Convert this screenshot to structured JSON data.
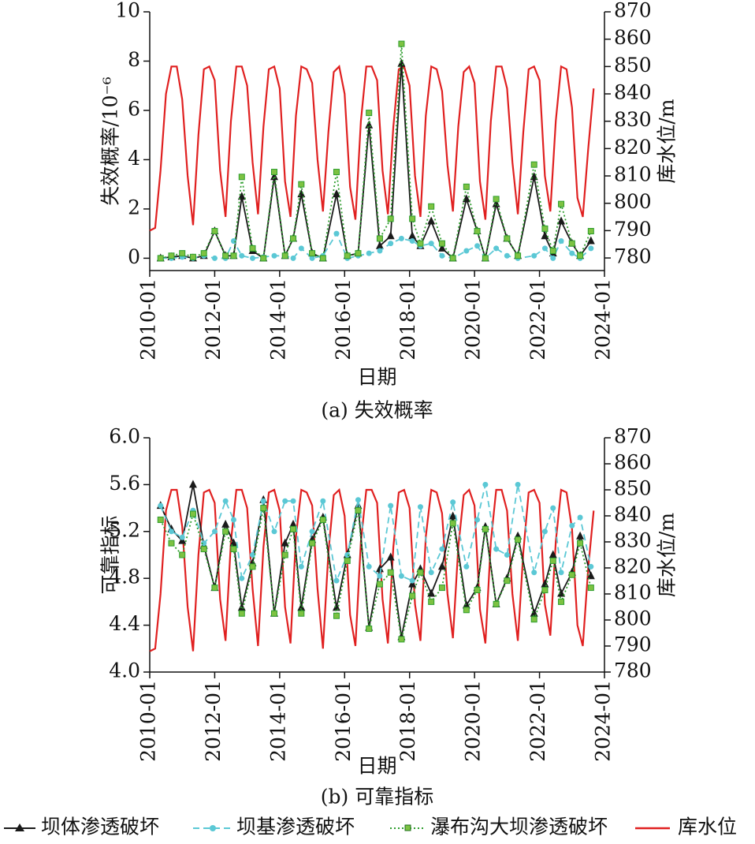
{
  "chart_data": [
    {
      "type": "line",
      "subtitle": "(a) 失效概率",
      "xlabel": "日期",
      "ylabel": "失效概率/10⁻⁶",
      "y2label": "库水位/m",
      "xlim": [
        "2010-01",
        "2024-01"
      ],
      "xticks": [
        "2010-01",
        "2012-01",
        "2014-01",
        "2016-01",
        "2018-01",
        "2020-01",
        "2022-01",
        "2024-01"
      ],
      "ylim": [
        -0.5,
        10
      ],
      "yticks": [
        0,
        2,
        4,
        6,
        8,
        10
      ],
      "y2lim": [
        775.4,
        870
      ],
      "y2ticks": [
        780,
        790,
        800,
        810,
        820,
        830,
        840,
        850,
        860,
        870
      ],
      "x": [
        "2010-05",
        "2010-09",
        "2011-01",
        "2011-05",
        "2011-09",
        "2012-01",
        "2012-05",
        "2012-08",
        "2012-11",
        "2013-03",
        "2013-07",
        "2013-11",
        "2014-03",
        "2014-06",
        "2014-09",
        "2015-01",
        "2015-05",
        "2015-10",
        "2016-02",
        "2016-06",
        "2016-10",
        "2017-02",
        "2017-06",
        "2017-10",
        "2018-02",
        "2018-05",
        "2018-09",
        "2019-01",
        "2019-05",
        "2019-10",
        "2020-02",
        "2020-05",
        "2020-09",
        "2021-01",
        "2021-05",
        "2021-11",
        "2022-03",
        "2022-06",
        "2022-09",
        "2023-01",
        "2023-04",
        "2023-08"
      ],
      "series": [
        {
          "name": "坝体渗透破坏",
          "color": "#1a1a1a",
          "marker": "triangle",
          "dash": "solid",
          "values": [
            0,
            0.05,
            0.1,
            0,
            0.1,
            1.1,
            0.1,
            0.1,
            2.5,
            0.3,
            0,
            3.3,
            0.1,
            0.8,
            2.6,
            0.2,
            0,
            2.6,
            0.1,
            0.2,
            5.4,
            0.5,
            0.9,
            7.9,
            0.9,
            0.5,
            1.5,
            0.4,
            0,
            2.4,
            1.1,
            0,
            2.2,
            0.8,
            0.1,
            3.3,
            0.9,
            0.2,
            1.5,
            0.6,
            0.1,
            0.7
          ]
        },
        {
          "name": "坝基渗透破坏",
          "color": "#5bc8d5",
          "marker": "circle",
          "dash": "dashed",
          "values": [
            0,
            0,
            0.05,
            0,
            0.1,
            0,
            0,
            0.7,
            0.1,
            0,
            0.05,
            0.1,
            0.1,
            0,
            0.4,
            0,
            0.1,
            1.0,
            0,
            0.1,
            0.2,
            0.3,
            0.6,
            0.8,
            0.7,
            0.5,
            0.6,
            0.1,
            0,
            0.3,
            0.5,
            0,
            0.4,
            0.1,
            0,
            0.1,
            0.4,
            0,
            0.7,
            0.2,
            0,
            0.4
          ]
        },
        {
          "name": "瀑布沟大坝渗透破坏",
          "color": "#2e9e2e",
          "marker": "square",
          "dash": "dotted",
          "values": [
            0,
            0.1,
            0.2,
            0.05,
            0.2,
            1.1,
            0.1,
            0.1,
            3.3,
            0.4,
            0,
            3.5,
            0.1,
            0.8,
            3,
            0.2,
            0,
            3.5,
            0.1,
            0.2,
            5.9,
            0.8,
            1.6,
            8.7,
            1.6,
            0.6,
            2.1,
            0.6,
            0,
            2.9,
            1.1,
            0,
            2.4,
            0.8,
            0.1,
            3.8,
            1.2,
            0.3,
            2.2,
            0.6,
            0.1,
            1.1
          ]
        },
        {
          "name": "库水位",
          "color": "#e02020",
          "marker": "none",
          "dash": "solid",
          "axis": "y2",
          "x": [
            "2010-01",
            "2010-03",
            "2010-05",
            "2010-07",
            "2010-09",
            "2010-11",
            "2011-01",
            "2011-03",
            "2011-05",
            "2011-07",
            "2011-09",
            "2011-11",
            "2012-01",
            "2012-03",
            "2012-05",
            "2012-07",
            "2012-09",
            "2012-11",
            "2013-01",
            "2013-03",
            "2013-05",
            "2013-07",
            "2013-09",
            "2013-11",
            "2014-01",
            "2014-03",
            "2014-05",
            "2014-07",
            "2014-09",
            "2014-11",
            "2015-01",
            "2015-03",
            "2015-05",
            "2015-07",
            "2015-09",
            "2015-11",
            "2016-01",
            "2016-03",
            "2016-05",
            "2016-07",
            "2016-09",
            "2016-11",
            "2017-01",
            "2017-03",
            "2017-05",
            "2017-07",
            "2017-09",
            "2017-11",
            "2018-01",
            "2018-03",
            "2018-05",
            "2018-07",
            "2018-09",
            "2018-11",
            "2019-01",
            "2019-03",
            "2019-05",
            "2019-07",
            "2019-09",
            "2019-11",
            "2020-01",
            "2020-03",
            "2020-05",
            "2020-07",
            "2020-09",
            "2020-11",
            "2021-01",
            "2021-03",
            "2021-05",
            "2021-07",
            "2021-09",
            "2021-11",
            "2022-01",
            "2022-03",
            "2022-05",
            "2022-07",
            "2022-09",
            "2022-11",
            "2023-01",
            "2023-03",
            "2023-05",
            "2023-07",
            "2023-09"
          ],
          "values": [
            790,
            791,
            812,
            840,
            850,
            850,
            838,
            810,
            792,
            825,
            849,
            850,
            845,
            812,
            795,
            830,
            850,
            850,
            843,
            815,
            796,
            828,
            849,
            850,
            842,
            808,
            795,
            832,
            850,
            849,
            844,
            816,
            797,
            826,
            848,
            850,
            840,
            806,
            794,
            830,
            850,
            850,
            845,
            812,
            796,
            828,
            849,
            850,
            843,
            810,
            795,
            832,
            850,
            849,
            841,
            814,
            797,
            828,
            848,
            850,
            844,
            808,
            794,
            830,
            850,
            850,
            842,
            815,
            796,
            826,
            849,
            850,
            845,
            810,
            797,
            830,
            850,
            849,
            835,
            802,
            795,
            820,
            842
          ]
        }
      ]
    },
    {
      "type": "line",
      "subtitle": "(b) 可靠指标",
      "xlabel": "日期",
      "ylabel": "可靠指标",
      "y2label": "库水位/m",
      "xlim": [
        "2010-01",
        "2024-01"
      ],
      "xticks": [
        "2010-01",
        "2012-01",
        "2014-01",
        "2016-01",
        "2018-01",
        "2020-01",
        "2022-01",
        "2024-01"
      ],
      "ylim": [
        4,
        6
      ],
      "yticks": [
        {
          "value": 6,
          "label": "6.0"
        },
        5.6,
        5.2,
        4.8,
        4.4,
        {
          "value": 4,
          "label": "4.0"
        }
      ],
      "y2lim": [
        780,
        870
      ],
      "y2ticks": [
        780,
        790,
        800,
        810,
        820,
        830,
        840,
        850,
        860,
        870
      ],
      "x": [
        "2010-05",
        "2010-09",
        "2011-01",
        "2011-05",
        "2011-09",
        "2012-01",
        "2012-05",
        "2012-08",
        "2012-11",
        "2013-03",
        "2013-07",
        "2013-11",
        "2014-03",
        "2014-06",
        "2014-09",
        "2015-01",
        "2015-05",
        "2015-10",
        "2016-02",
        "2016-06",
        "2016-10",
        "2017-02",
        "2017-06",
        "2017-10",
        "2018-02",
        "2018-05",
        "2018-09",
        "2019-01",
        "2019-05",
        "2019-10",
        "2020-02",
        "2020-05",
        "2020-09",
        "2021-01",
        "2021-05",
        "2021-11",
        "2022-03",
        "2022-06",
        "2022-09",
        "2023-01",
        "2023-04",
        "2023-08"
      ],
      "series": [
        {
          "name": "坝体渗透破坏",
          "color": "#1a1a1a",
          "marker": "triangle",
          "dash": "solid",
          "values": [
            5.42,
            5.22,
            5.12,
            5.6,
            5.08,
            4.72,
            5.26,
            5.1,
            4.55,
            4.93,
            5.47,
            4.5,
            5.1,
            5.26,
            4.55,
            5.13,
            5.32,
            4.55,
            5.0,
            5.42,
            4.38,
            4.88,
            4.98,
            4.3,
            4.75,
            4.88,
            4.67,
            4.9,
            5.33,
            4.57,
            4.72,
            5.24,
            4.58,
            4.8,
            5.16,
            4.5,
            4.75,
            5.0,
            4.67,
            4.85,
            5.16,
            4.82
          ]
        },
        {
          "name": "坝基渗透破坏",
          "color": "#5bc8d5",
          "marker": "circle",
          "dash": "dashed",
          "values": [
            5.42,
            5.2,
            5.15,
            5.38,
            5.1,
            5.2,
            5.46,
            5.3,
            4.8,
            5.0,
            5.46,
            5.2,
            5.46,
            5.46,
            4.9,
            5.2,
            5.46,
            4.78,
            5.0,
            5.47,
            4.9,
            4.82,
            5.42,
            4.82,
            4.78,
            5.41,
            4.85,
            5.05,
            5.45,
            4.9,
            5.3,
            5.6,
            5.05,
            5.0,
            5.6,
            4.85,
            5.2,
            5.4,
            4.85,
            5.25,
            5.32,
            4.9
          ]
        },
        {
          "name": "瀑布沟大坝渗透破坏",
          "color": "#2e9e2e",
          "marker": "square",
          "dash": "dotted",
          "values": [
            5.3,
            5.1,
            5.0,
            5.35,
            5.05,
            4.72,
            5.2,
            5.05,
            4.5,
            4.9,
            5.4,
            4.5,
            5.0,
            5.22,
            4.5,
            5.1,
            5.3,
            4.48,
            4.95,
            5.38,
            4.37,
            4.75,
            4.85,
            4.28,
            4.65,
            4.85,
            4.6,
            4.72,
            5.27,
            4.53,
            4.7,
            5.22,
            4.58,
            4.78,
            5.13,
            4.45,
            4.7,
            4.95,
            4.6,
            4.83,
            5.1,
            4.72
          ]
        },
        {
          "name": "库水位",
          "color": "#e02020",
          "marker": "none",
          "dash": "solid",
          "axis": "y2",
          "x": [
            "2010-01",
            "2010-03",
            "2010-05",
            "2010-07",
            "2010-09",
            "2010-11",
            "2011-01",
            "2011-03",
            "2011-05",
            "2011-07",
            "2011-09",
            "2011-11",
            "2012-01",
            "2012-03",
            "2012-05",
            "2012-07",
            "2012-09",
            "2012-11",
            "2013-01",
            "2013-03",
            "2013-05",
            "2013-07",
            "2013-09",
            "2013-11",
            "2014-01",
            "2014-03",
            "2014-05",
            "2014-07",
            "2014-09",
            "2014-11",
            "2015-01",
            "2015-03",
            "2015-05",
            "2015-07",
            "2015-09",
            "2015-11",
            "2016-01",
            "2016-03",
            "2016-05",
            "2016-07",
            "2016-09",
            "2016-11",
            "2017-01",
            "2017-03",
            "2017-05",
            "2017-07",
            "2017-09",
            "2017-11",
            "2018-01",
            "2018-03",
            "2018-05",
            "2018-07",
            "2018-09",
            "2018-11",
            "2019-01",
            "2019-03",
            "2019-05",
            "2019-07",
            "2019-09",
            "2019-11",
            "2020-01",
            "2020-03",
            "2020-05",
            "2020-07",
            "2020-09",
            "2020-11",
            "2021-01",
            "2021-03",
            "2021-05",
            "2021-07",
            "2021-09",
            "2021-11",
            "2022-01",
            "2022-03",
            "2022-05",
            "2022-07",
            "2022-09",
            "2022-11",
            "2023-01",
            "2023-03",
            "2023-05",
            "2023-07",
            "2023-09"
          ],
          "values": [
            788,
            789,
            810,
            842,
            850,
            850,
            836,
            805,
            788,
            825,
            849,
            850,
            845,
            808,
            792,
            830,
            850,
            850,
            843,
            812,
            790,
            828,
            849,
            850,
            842,
            805,
            791,
            832,
            850,
            849,
            844,
            812,
            789,
            826,
            848,
            850,
            840,
            802,
            790,
            830,
            850,
            850,
            845,
            808,
            791,
            828,
            849,
            850,
            843,
            806,
            792,
            832,
            850,
            849,
            841,
            810,
            793,
            828,
            848,
            850,
            844,
            804,
            791,
            830,
            850,
            850,
            842,
            810,
            792,
            826,
            849,
            850,
            845,
            806,
            794,
            830,
            850,
            849,
            835,
            798,
            790,
            820,
            842
          ]
        }
      ]
    }
  ]
}
